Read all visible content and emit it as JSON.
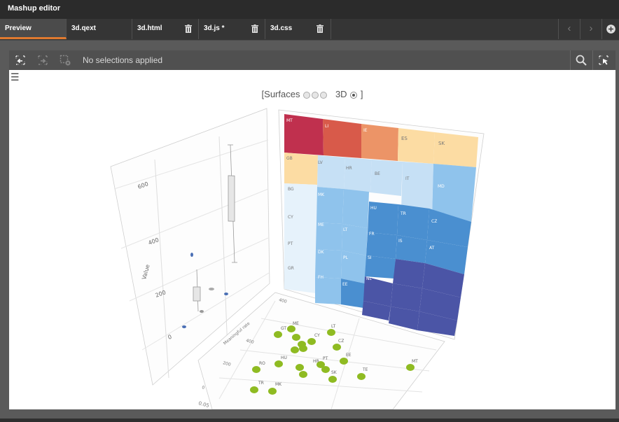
{
  "app": {
    "title": "Mashup editor"
  },
  "tabs": [
    {
      "label": "Preview"
    },
    {
      "label": "3d.qext"
    },
    {
      "label": "3d.html"
    },
    {
      "label": "3d.js *"
    },
    {
      "label": "3d.css"
    }
  ],
  "toolbar": {
    "selections_text": "No selections applied"
  },
  "switcher": {
    "open": "[Surfaces",
    "mode": "3D",
    "close": "]"
  },
  "colors": {
    "accent": "#e07a2f"
  },
  "boxplot": {
    "ylabel": "Value",
    "ticks": [
      "600",
      "400",
      "200",
      "0"
    ]
  },
  "treemap": {
    "labels": [
      "MT",
      "LI",
      "IE",
      "ES",
      "SK",
      "GB",
      "LV",
      "HR",
      "BE",
      "IT",
      "MD",
      "BG",
      "CY",
      "PT",
      "GR",
      "MK",
      "HU",
      "TR",
      "CZ",
      "ME",
      "LT",
      "FR",
      "IS",
      "AT",
      "DK",
      "PL",
      "SI",
      "FH",
      "EE",
      "NL"
    ]
  },
  "scatter": {
    "axis_label": "Meaningful rate",
    "ticks": [
      "400",
      "400",
      "200",
      "0",
      "0.05"
    ],
    "labels": [
      "MT",
      "RO",
      "HU",
      "HR",
      "PT",
      "TR",
      "MK",
      "SK",
      "EE",
      "TE",
      "LT",
      "CY",
      "ME",
      "GT",
      "CZ"
    ]
  }
}
